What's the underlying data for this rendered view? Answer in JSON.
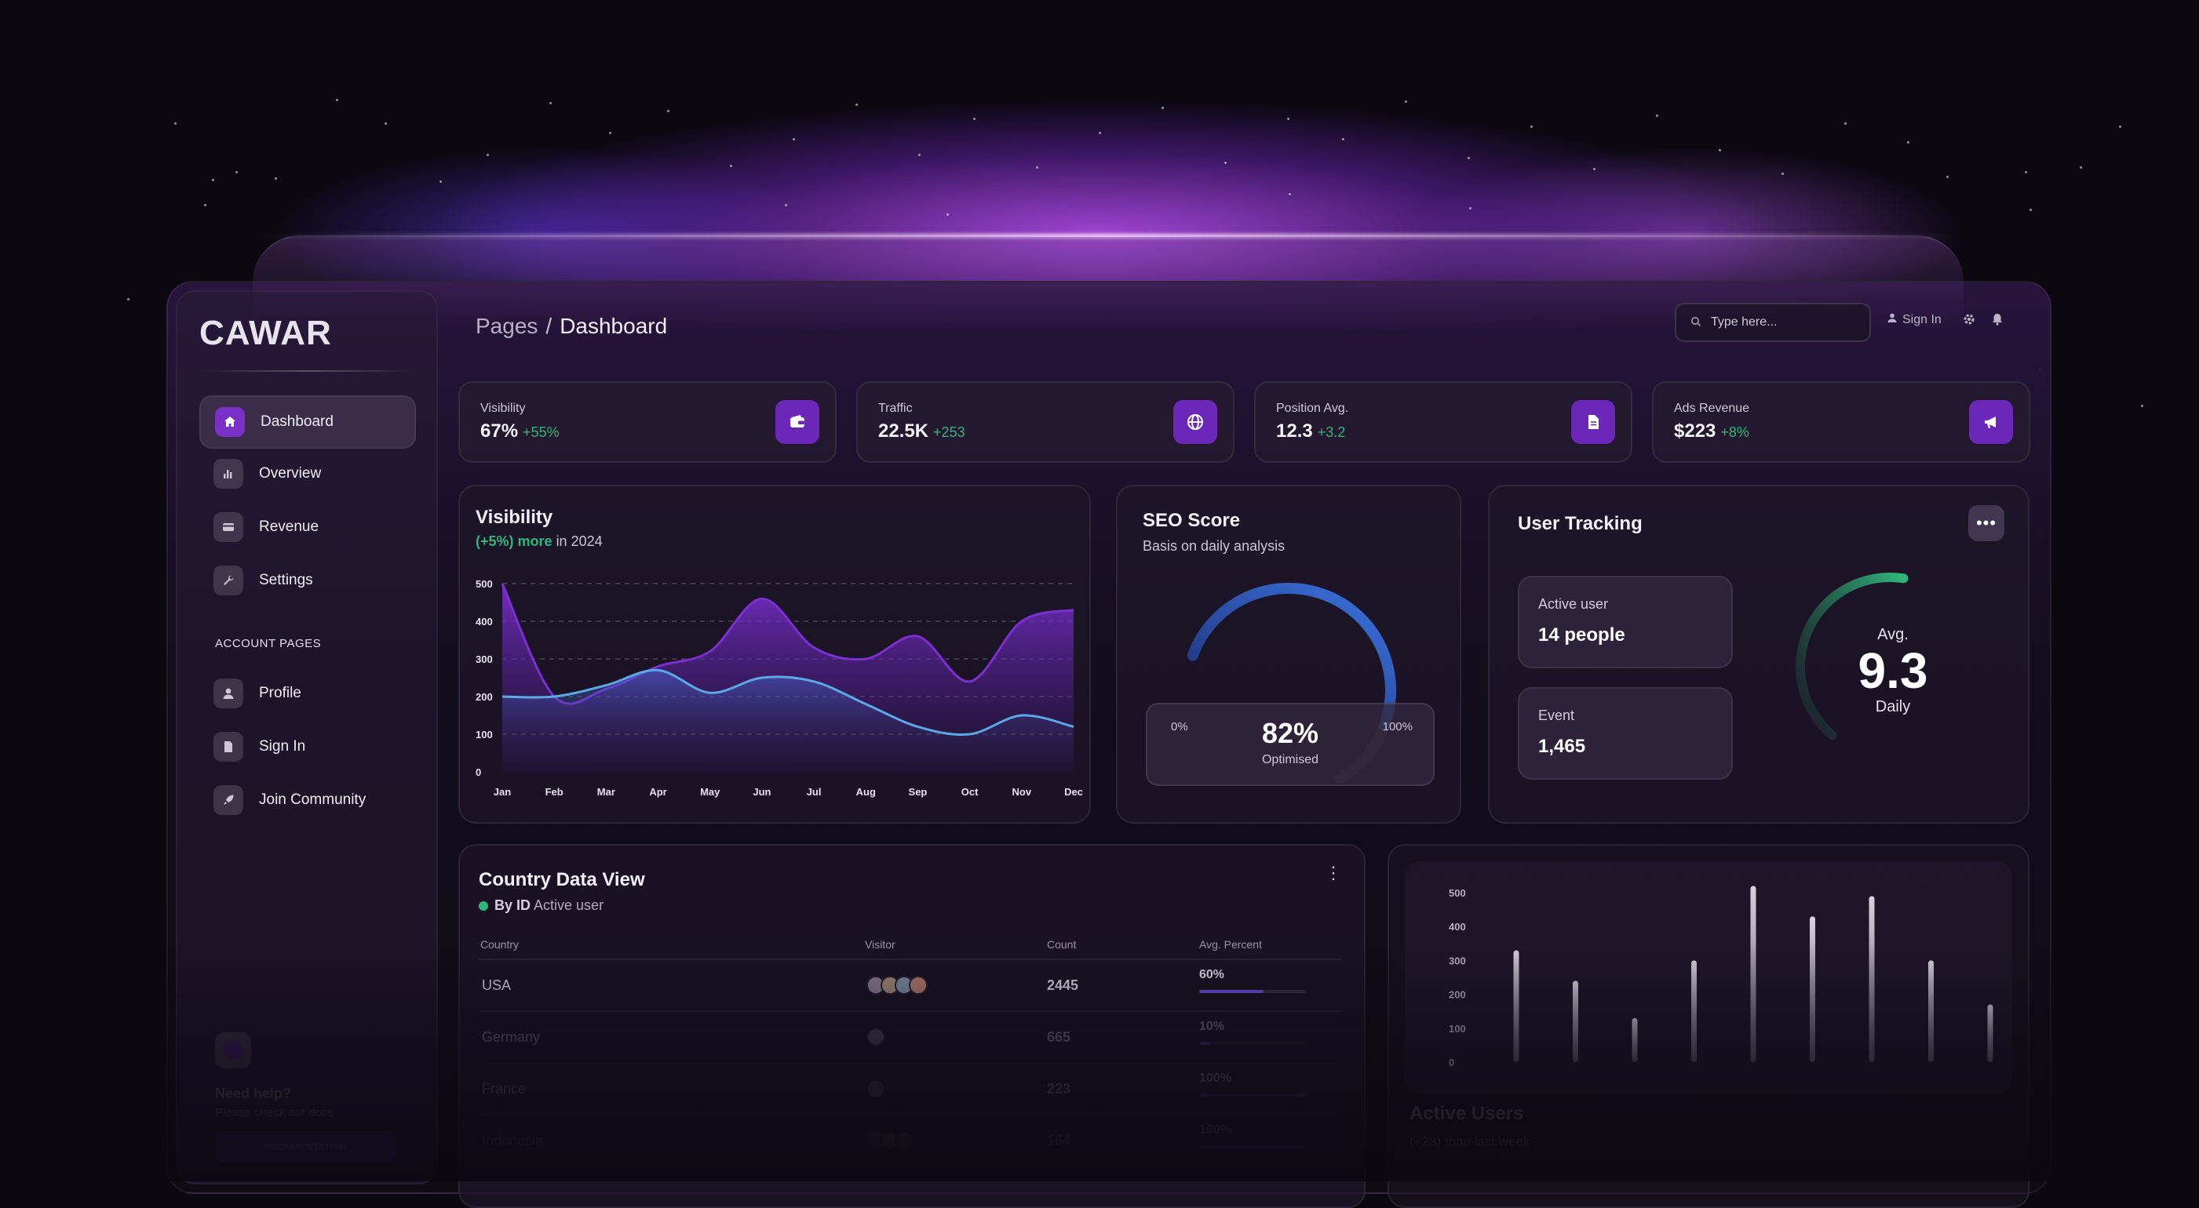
{
  "brand": {
    "logo": "CAWAR",
    "accent": "#7a2fc7",
    "positive": "#2fb67c"
  },
  "sidebar": {
    "items": [
      {
        "label": "Dashboard",
        "icon": "home-icon"
      },
      {
        "label": "Overview",
        "icon": "bar-chart-icon"
      },
      {
        "label": "Revenue",
        "icon": "credit-card-icon"
      },
      {
        "label": "Settings",
        "icon": "wrench-icon"
      }
    ],
    "account_heading": "ACCOUNT PAGES",
    "account_items": [
      {
        "label": "Profile",
        "icon": "user-icon"
      },
      {
        "label": "Sign In",
        "icon": "document-icon"
      },
      {
        "label": "Join Community",
        "icon": "rocket-icon"
      }
    ],
    "help": {
      "title": "Need help?",
      "subtitle": "Please check our docs",
      "button": "DOCUMENTATION"
    }
  },
  "header": {
    "breadcrumb_parent": "Pages",
    "breadcrumb_separator": "/",
    "breadcrumb_current": "Dashboard",
    "search_placeholder": "Type here...",
    "sign_in": "Sign In"
  },
  "stats": [
    {
      "title": "Visibility",
      "value": "67%",
      "delta": "+55%",
      "icon": "wallet-icon"
    },
    {
      "title": "Traffic",
      "value": "22.5K",
      "delta": "+253",
      "icon": "globe-icon"
    },
    {
      "title": "Position Avg.",
      "value": "12.3",
      "delta": "+3.2",
      "icon": "document-icon"
    },
    {
      "title": "Ads Revenue",
      "value": "$223",
      "delta": "+8%",
      "icon": "megaphone-icon"
    }
  ],
  "visibility": {
    "title": "Visibility",
    "sub_highlight": "(+5%) more",
    "sub_rest": "in 2024"
  },
  "seo": {
    "title": "SEO Score",
    "subtitle": "Basis on daily analysis",
    "min_label": "0%",
    "max_label": "100%",
    "value": "82%",
    "value_label": "Optimised",
    "fraction": 0.82
  },
  "tracking": {
    "title": "User Tracking",
    "more": "•••",
    "active_label": "Active user",
    "active_value": "14 people",
    "event_label": "Event",
    "event_value": "1,465",
    "avg_label": "Avg.",
    "avg_value": "9.3",
    "avg_period": "Daily",
    "gauge_fraction": 0.62
  },
  "country": {
    "title": "Country Data View",
    "sub_bold": "By ID",
    "sub_rest": "Active user",
    "more": "⋮",
    "columns": [
      "Country",
      "Visitor",
      "Count",
      "Avg. Percent"
    ],
    "rows": [
      {
        "country": "USA",
        "count": "2445",
        "percent": "60%",
        "fraction": 0.6,
        "avatars": 4
      },
      {
        "country": "Germany",
        "count": "665",
        "percent": "10%",
        "fraction": 0.1,
        "avatars": 1
      },
      {
        "country": "France",
        "count": "223",
        "percent": "100%",
        "fraction": 1.0,
        "avatars": 1
      },
      {
        "country": "Indonesia",
        "count": "164",
        "percent": "100%",
        "fraction": 1.0,
        "avatars": 3
      }
    ]
  },
  "active_users": {
    "title": "Active Users",
    "subtitle": "(+23) than last week"
  },
  "chart_data": [
    {
      "type": "area",
      "title": "Visibility",
      "categories": [
        "Jan",
        "Feb",
        "Mar",
        "Apr",
        "May",
        "Jun",
        "Jul",
        "Aug",
        "Sep",
        "Oct",
        "Nov",
        "Dec"
      ],
      "ylim": [
        0,
        500
      ],
      "yticks": [
        0,
        100,
        200,
        300,
        400,
        500
      ],
      "grid": true,
      "series": [
        {
          "values": [
            500,
            200,
            220,
            280,
            320,
            460,
            330,
            300,
            360,
            240,
            400,
            430
          ],
          "color": "#7b2fd0"
        },
        {
          "values": [
            200,
            200,
            230,
            270,
            210,
            250,
            240,
            180,
            120,
            100,
            150,
            120
          ],
          "color": "#5aa9e6"
        }
      ]
    },
    {
      "type": "bar",
      "title": "Active Users",
      "ylim": [
        0,
        500
      ],
      "yticks": [
        0,
        100,
        200,
        300,
        400,
        500
      ],
      "values": [
        330,
        240,
        130,
        300,
        520,
        430,
        490,
        300,
        170
      ],
      "grid": false
    }
  ]
}
